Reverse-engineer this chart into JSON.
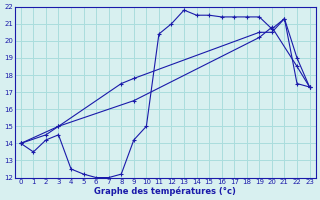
{
  "xlabel": "Graphe des températures (°c)",
  "xlim": [
    -0.5,
    23.5
  ],
  "ylim": [
    12,
    22
  ],
  "yticks": [
    12,
    13,
    14,
    15,
    16,
    17,
    18,
    19,
    20,
    21,
    22
  ],
  "xticks": [
    0,
    1,
    2,
    3,
    4,
    5,
    6,
    7,
    8,
    9,
    10,
    11,
    12,
    13,
    14,
    15,
    16,
    17,
    18,
    19,
    20,
    21,
    22,
    23
  ],
  "background_color": "#d8f0f0",
  "line_color": "#1a1aaa",
  "grid_color": "#aadddd",
  "line1_x": [
    0,
    1,
    2,
    3,
    4,
    5,
    6,
    7,
    8,
    9,
    10,
    11,
    12,
    13,
    14,
    15,
    16,
    17,
    18,
    19,
    20,
    21,
    22,
    23
  ],
  "line1_y": [
    14.0,
    13.5,
    14.2,
    14.5,
    12.5,
    12.2,
    12.0,
    12.0,
    12.2,
    14.2,
    15.0,
    20.4,
    21.0,
    21.8,
    21.5,
    21.5,
    21.4,
    21.4,
    21.4,
    21.4,
    20.7,
    21.3,
    19.0,
    17.3
  ],
  "line2_x": [
    0,
    2,
    3,
    8,
    9,
    19,
    20,
    21,
    22,
    23
  ],
  "line2_y": [
    14.0,
    14.5,
    15.0,
    17.5,
    17.8,
    20.5,
    20.5,
    21.3,
    17.5,
    17.3
  ],
  "line3_x": [
    0,
    3,
    9,
    19,
    20,
    22,
    23
  ],
  "line3_y": [
    14.0,
    15.0,
    16.5,
    20.2,
    20.8,
    18.5,
    17.3
  ]
}
